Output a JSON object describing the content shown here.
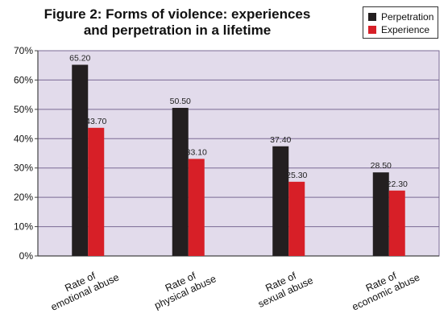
{
  "chart_data": {
    "type": "bar",
    "title_lines": [
      "Figure 2: Forms of violence: experiences",
      "and perpetration in a lifetime"
    ],
    "categories": [
      [
        "Rate of",
        "emotional abuse"
      ],
      [
        "Rate of",
        "physical abuse"
      ],
      [
        "Rate of",
        "sexual abuse"
      ],
      [
        "Rate of",
        "economic abuse"
      ]
    ],
    "series": [
      {
        "name": "Perpetration",
        "color": "#231f20",
        "values": [
          65.2,
          50.5,
          37.4,
          28.5
        ],
        "labels": [
          "65.20",
          "50.50",
          "37.40",
          "28.50"
        ]
      },
      {
        "name": "Experience",
        "color": "#d71f27",
        "values": [
          43.7,
          33.1,
          25.3,
          22.3
        ],
        "labels": [
          "43.70",
          "33.10",
          "25.30",
          "22.30"
        ]
      }
    ],
    "ylim": [
      0,
      70
    ],
    "yticks": [
      "0%",
      "10%",
      "20%",
      "30%",
      "40%",
      "50%",
      "60%",
      "70%"
    ],
    "grid": true,
    "legend_position": "top-right",
    "plot_background": "#e2dbeb",
    "grid_color": "#7a6a94"
  }
}
